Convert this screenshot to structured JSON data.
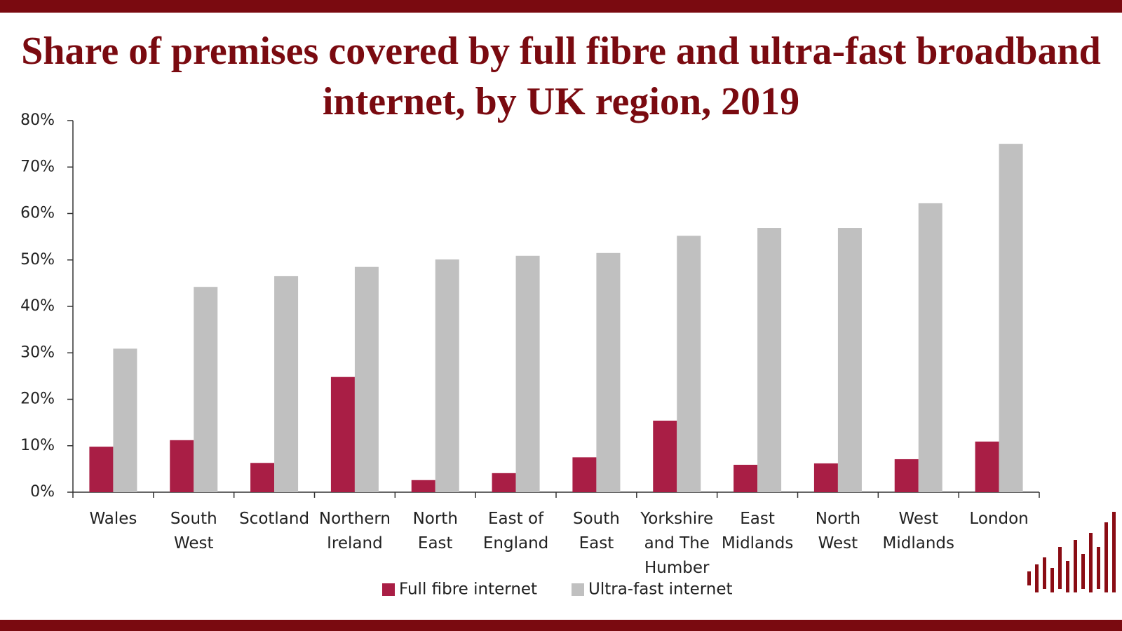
{
  "chart_data": {
    "type": "bar",
    "title": "Share of premises covered by full fibre and ultra-fast broadband internet, by UK region, 2019",
    "categories": [
      "Wales",
      "South\nWest",
      "Scotland",
      "Northern\nIreland",
      "North\nEast",
      "East of\nEngland",
      "South\nEast",
      "Yorkshire\nand The\nHumber",
      "East\nMidlands",
      "North\nWest",
      "West\nMidlands",
      "London"
    ],
    "series": [
      {
        "name": "Full fibre internet",
        "color": "#a91e45",
        "values": [
          9.8,
          11.2,
          6.3,
          24.8,
          2.6,
          4.1,
          7.5,
          15.4,
          5.9,
          6.2,
          7.1,
          10.9
        ]
      },
      {
        "name": "Ultra-fast internet",
        "color": "#c0c0c0",
        "values": [
          30.9,
          44.2,
          46.5,
          48.5,
          50.1,
          50.9,
          51.5,
          55.2,
          56.9,
          56.9,
          62.2,
          75.0
        ]
      }
    ],
    "ylim": [
      0,
      80
    ],
    "yticks": [
      {
        "value": 0,
        "label": "0%"
      },
      {
        "value": 10,
        "label": "10%"
      },
      {
        "value": 20,
        "label": "20%"
      },
      {
        "value": 30,
        "label": "30%"
      },
      {
        "value": 40,
        "label": "40%"
      },
      {
        "value": 50,
        "label": "50%"
      },
      {
        "value": 60,
        "label": "60%"
      },
      {
        "value": 70,
        "label": "70%"
      },
      {
        "value": 80,
        "label": "80%"
      }
    ],
    "legend": "bottom"
  }
}
